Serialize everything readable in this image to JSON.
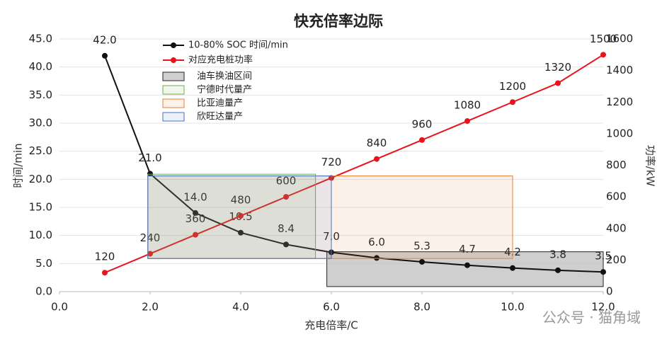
{
  "chart_data": {
    "type": "line",
    "title": "快充倍率边际",
    "x_label": "充电倍率/C",
    "y_label": "时间/min",
    "y2_label": "功率/kW",
    "x": [
      1,
      2,
      3,
      4,
      5,
      6,
      7,
      8,
      9,
      10,
      11,
      12
    ],
    "series": [
      {
        "name": "10-80% SOC 时间/min",
        "color": "#111111",
        "values": [
          42.0,
          21.0,
          14.0,
          10.5,
          8.4,
          7.0,
          6.0,
          5.3,
          4.7,
          4.2,
          3.8,
          3.5
        ],
        "value_labels": [
          "42.0",
          "21.0",
          "14.0",
          "10.5",
          "8.4",
          "7.0",
          "6.0",
          "5.3",
          "4.7",
          "4.2",
          "3.8",
          "3.5"
        ]
      },
      {
        "name": "对应充电桩功率",
        "color": "#e8141c",
        "axis": "y2",
        "values": [
          120,
          240,
          360,
          480,
          600,
          720,
          840,
          960,
          1080,
          1200,
          1320,
          1500
        ]
      }
    ],
    "regions": [
      {
        "name": "油车换油区间",
        "color": "#bfbfbf",
        "x": [
          5.9,
          12
        ],
        "y": [
          0.9,
          7.1
        ]
      },
      {
        "name": "宁德时代量产",
        "color": "#70ad47",
        "x": [
          1.95,
          5.65
        ],
        "y": [
          5.9,
          20.9
        ]
      },
      {
        "name": "比亚迪量产",
        "color": "#ed7d31",
        "x": [
          1.95,
          10
        ],
        "y": [
          5.9,
          20.6
        ]
      },
      {
        "name": "欣旺达量产",
        "color": "#4472c4",
        "x": [
          1.95,
          6
        ],
        "y": [
          5.9,
          20.6
        ]
      }
    ],
    "xlim": [
      0,
      12
    ],
    "xticks": [
      {
        "value": 0,
        "label": "0.0"
      },
      {
        "value": 2,
        "label": "2.0"
      },
      {
        "value": 4,
        "label": "4.0"
      },
      {
        "value": 6,
        "label": "6.0"
      },
      {
        "value": 8,
        "label": "8.0"
      },
      {
        "value": 10,
        "label": "10.0"
      },
      {
        "value": 12,
        "label": "12.0"
      }
    ],
    "ylim": [
      0,
      45
    ],
    "yticks": [
      {
        "value": 0,
        "label": "0.0"
      },
      {
        "value": 5,
        "label": "5.0"
      },
      {
        "value": 10,
        "label": "10.0"
      },
      {
        "value": 15,
        "label": "15.0"
      },
      {
        "value": 20,
        "label": "20.0"
      },
      {
        "value": 25,
        "label": "25.0"
      },
      {
        "value": 30,
        "label": "30.0"
      },
      {
        "value": 35,
        "label": "35.0"
      },
      {
        "value": 40,
        "label": "40.0"
      },
      {
        "value": 45,
        "label": "45.0"
      }
    ],
    "y2lim": [
      0,
      1600
    ],
    "y2ticks": [
      0,
      200,
      400,
      600,
      800,
      1000,
      1200,
      1400,
      1600
    ],
    "grid": true,
    "legend": "top-left",
    "watermark": "公众号 · 猫角域"
  }
}
